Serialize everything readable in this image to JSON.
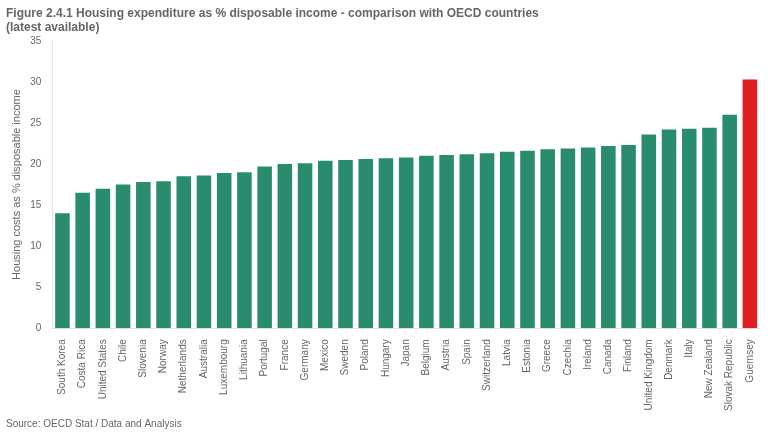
{
  "chart_data": {
    "type": "bar",
    "title": "Figure 2.4.1 Housing expenditure as % disposable income - comparison with OECD countries",
    "subtitle": "(latest available)",
    "ylabel": "Housing costs as % disposable income",
    "source": "Source: OECD Stat / Data and Analysis",
    "categories": [
      "South Korea",
      "Costa Rica",
      "United States",
      "Chile",
      "Slovenia",
      "Norway",
      "Netherlands",
      "Australia",
      "Luxembourg",
      "Lithuania",
      "Portugal",
      "France",
      "Germany",
      "Mexico",
      "Sweden",
      "Poland",
      "Hungary",
      "Japan",
      "Belgium",
      "Austria",
      "Spain",
      "Switzerland",
      "Latvia",
      "Estonia",
      "Greece",
      "Czechia",
      "Ireland",
      "Canada",
      "Finland",
      "United Kingdom",
      "Denmark",
      "Italy",
      "New Zealand",
      "Slovak Republic",
      "Guernsey"
    ],
    "values": [
      14.0,
      16.5,
      17.0,
      17.5,
      17.8,
      17.9,
      18.5,
      18.6,
      18.9,
      19.0,
      19.7,
      20.0,
      20.1,
      20.4,
      20.5,
      20.6,
      20.7,
      20.8,
      21.0,
      21.1,
      21.2,
      21.3,
      21.5,
      21.6,
      21.8,
      21.9,
      22.0,
      22.2,
      22.3,
      23.6,
      24.2,
      24.3,
      24.4,
      26.0,
      30.3
    ],
    "colors": [
      "#2a8c6e",
      "#2a8c6e",
      "#2a8c6e",
      "#2a8c6e",
      "#2a8c6e",
      "#2a8c6e",
      "#2a8c6e",
      "#2a8c6e",
      "#2a8c6e",
      "#2a8c6e",
      "#2a8c6e",
      "#2a8c6e",
      "#2a8c6e",
      "#2a8c6e",
      "#2a8c6e",
      "#2a8c6e",
      "#2a8c6e",
      "#2a8c6e",
      "#2a8c6e",
      "#2a8c6e",
      "#2a8c6e",
      "#2a8c6e",
      "#2a8c6e",
      "#2a8c6e",
      "#2a8c6e",
      "#2a8c6e",
      "#2a8c6e",
      "#2a8c6e",
      "#2a8c6e",
      "#2a8c6e",
      "#2a8c6e",
      "#2a8c6e",
      "#2a8c6e",
      "#2a8c6e",
      "#e02020"
    ],
    "ylim": [
      0,
      35
    ],
    "yticks": [
      0,
      5,
      10,
      15,
      20,
      25,
      30,
      35
    ],
    "grid": false
  }
}
